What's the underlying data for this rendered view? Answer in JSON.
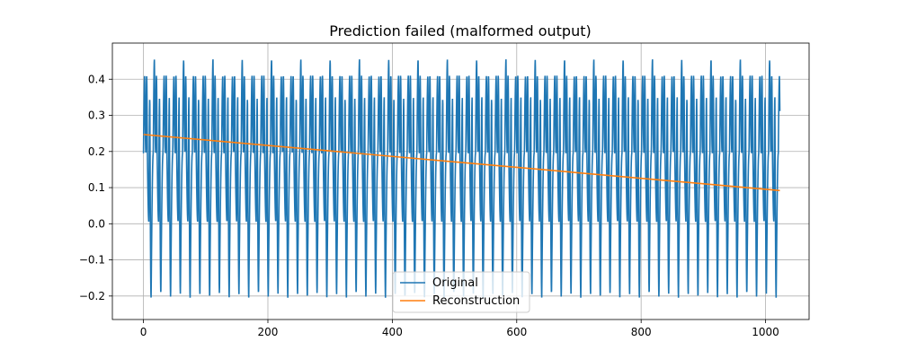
{
  "chart_data": {
    "type": "line",
    "title": "Prediction failed (malformed output)",
    "xlabel": "",
    "ylabel": "",
    "xlim": [
      -50,
      1070
    ],
    "ylim": [
      -0.265,
      0.5
    ],
    "xticks": [
      0,
      200,
      400,
      600,
      800,
      1000
    ],
    "xtick_labels": [
      "0",
      "200",
      "400",
      "600",
      "800",
      "1000"
    ],
    "yticks": [
      -0.2,
      -0.1,
      0.0,
      0.1,
      0.2,
      0.3,
      0.4
    ],
    "ytick_labels": [
      "−0.2",
      "−0.1",
      "0.0",
      "0.1",
      "0.2",
      "0.3",
      "0.4"
    ],
    "grid": true,
    "legend_position": "bottom-center",
    "series": [
      {
        "name": "Original",
        "color": "#1f77b4",
        "x_range": [
          0,
          1023
        ],
        "period": 15.7,
        "peak_high": 0.41,
        "peak_high_alt": 0.455,
        "trough_low": -0.205,
        "mid_trough": 0.005,
        "mid_value": 0.195,
        "description_points": "periodic oscillation between about -0.22 and 0.45"
      },
      {
        "name": "Reconstruction",
        "color": "#ff7f0e",
        "x": [
          0,
          1023
        ],
        "y": [
          0.247,
          0.092
        ]
      }
    ]
  }
}
